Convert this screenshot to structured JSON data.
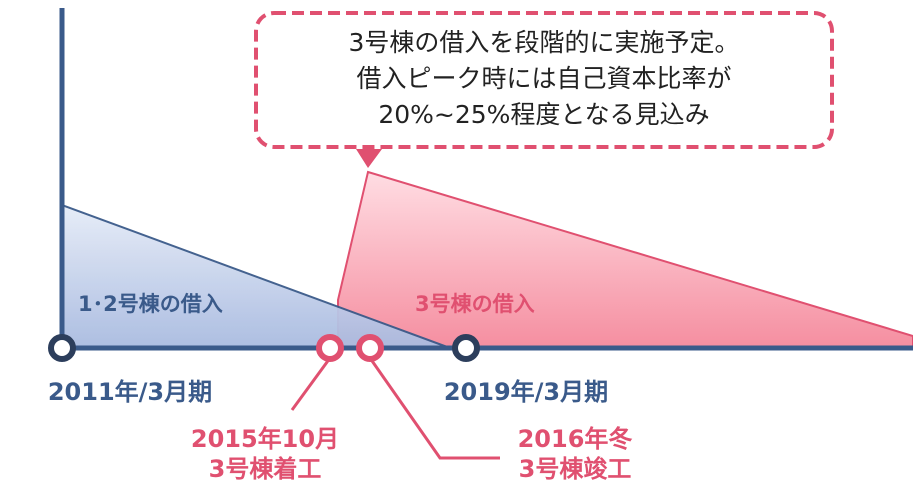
{
  "callout": {
    "lines": [
      "3号棟の借入を段階的に実施予定。",
      "借入ピーク時には自己資本比率が",
      "20%~25%程度となる見込み"
    ]
  },
  "areas": {
    "existing": "1･2号棟の借入",
    "new": "3号棟の借入"
  },
  "points": {
    "start": "2011年/3月期",
    "end": "2019年/3月期",
    "construction_start": [
      "2015年10月",
      "3号棟着工"
    ],
    "construction_end": [
      "2016年冬",
      "3号棟竣工"
    ]
  }
}
